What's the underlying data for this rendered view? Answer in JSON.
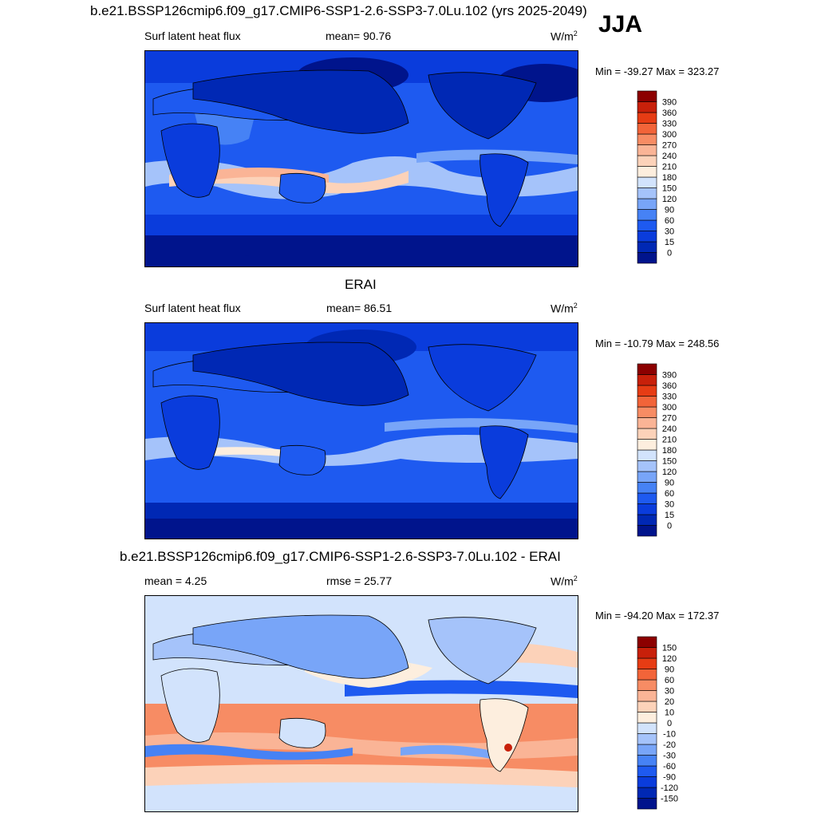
{
  "header": {
    "title": "b.e21.BSSP126cmip6.f09_g17.CMIP6-SSP1-2.6-SSP3-7.0Lu.102 (yrs 2025-2049)",
    "season": "JJA"
  },
  "panels": [
    {
      "variable": "Surf latent heat flux",
      "stat": "mean=  90.76",
      "units": "W/m",
      "units_sup": "2",
      "minmax": "Min = -39.27 Max = 323.27"
    },
    {
      "title": "ERAI",
      "variable": "Surf latent heat flux",
      "stat": "mean=  86.51",
      "units": "W/m",
      "units_sup": "2",
      "minmax": "Min = -10.79 Max = 248.56"
    },
    {
      "title": "b.e21.BSSP126cmip6.f09_g17.CMIP6-SSP1-2.6-SSP3-7.0Lu.102 - ERAI",
      "stat_left": "mean =   4.25",
      "stat_mid": "rmse =  25.77",
      "units": "W/m",
      "units_sup": "2",
      "minmax": "Min = -94.20 Max = 172.37"
    }
  ],
  "chart_data": [
    {
      "type": "heatmap",
      "variable": "Surf latent heat flux",
      "units": "W/m^2",
      "mean": 90.76,
      "min": -39.27,
      "max": 323.27,
      "colorbar": {
        "levels": [
          0,
          15,
          30,
          60,
          90,
          120,
          150,
          180,
          210,
          240,
          270,
          300,
          330,
          360,
          390
        ],
        "colors": [
          "#00148c",
          "#0028b4",
          "#0a3cdc",
          "#1e5af0",
          "#4682f5",
          "#78a5f8",
          "#a5c3fa",
          "#d2e3fc",
          "#fdeede",
          "#fcd2b9",
          "#fab496",
          "#f78c64",
          "#f26439",
          "#e63c14",
          "#c8200a",
          "#8c0000"
        ]
      }
    },
    {
      "type": "heatmap",
      "title": "ERAI",
      "variable": "Surf latent heat flux",
      "units": "W/m^2",
      "mean": 86.51,
      "min": -10.79,
      "max": 248.56,
      "colorbar": {
        "levels": [
          0,
          15,
          30,
          60,
          90,
          120,
          150,
          180,
          210,
          240,
          270,
          300,
          330,
          360,
          390
        ],
        "colors": [
          "#00148c",
          "#0028b4",
          "#0a3cdc",
          "#1e5af0",
          "#4682f5",
          "#78a5f8",
          "#a5c3fa",
          "#d2e3fc",
          "#fdeede",
          "#fcd2b9",
          "#fab496",
          "#f78c64",
          "#f26439",
          "#e63c14",
          "#c8200a",
          "#8c0000"
        ]
      }
    },
    {
      "type": "heatmap",
      "title": "b.e21.BSSP126cmip6.f09_g17.CMIP6-SSP1-2.6-SSP3-7.0Lu.102 - ERAI",
      "units": "W/m^2",
      "mean": 4.25,
      "rmse": 25.77,
      "min": -94.2,
      "max": 172.37,
      "colorbar": {
        "levels": [
          -150,
          -120,
          -90,
          -60,
          -30,
          -20,
          -10,
          0,
          10,
          20,
          30,
          60,
          90,
          120,
          150
        ],
        "colors": [
          "#00148c",
          "#0028b4",
          "#0a3cdc",
          "#1e5af0",
          "#4682f5",
          "#78a5f8",
          "#a5c3fa",
          "#d2e3fc",
          "#fdeede",
          "#fcd2b9",
          "#fab496",
          "#f78c64",
          "#f26439",
          "#e63c14",
          "#c8200a",
          "#8c0000"
        ]
      }
    }
  ]
}
